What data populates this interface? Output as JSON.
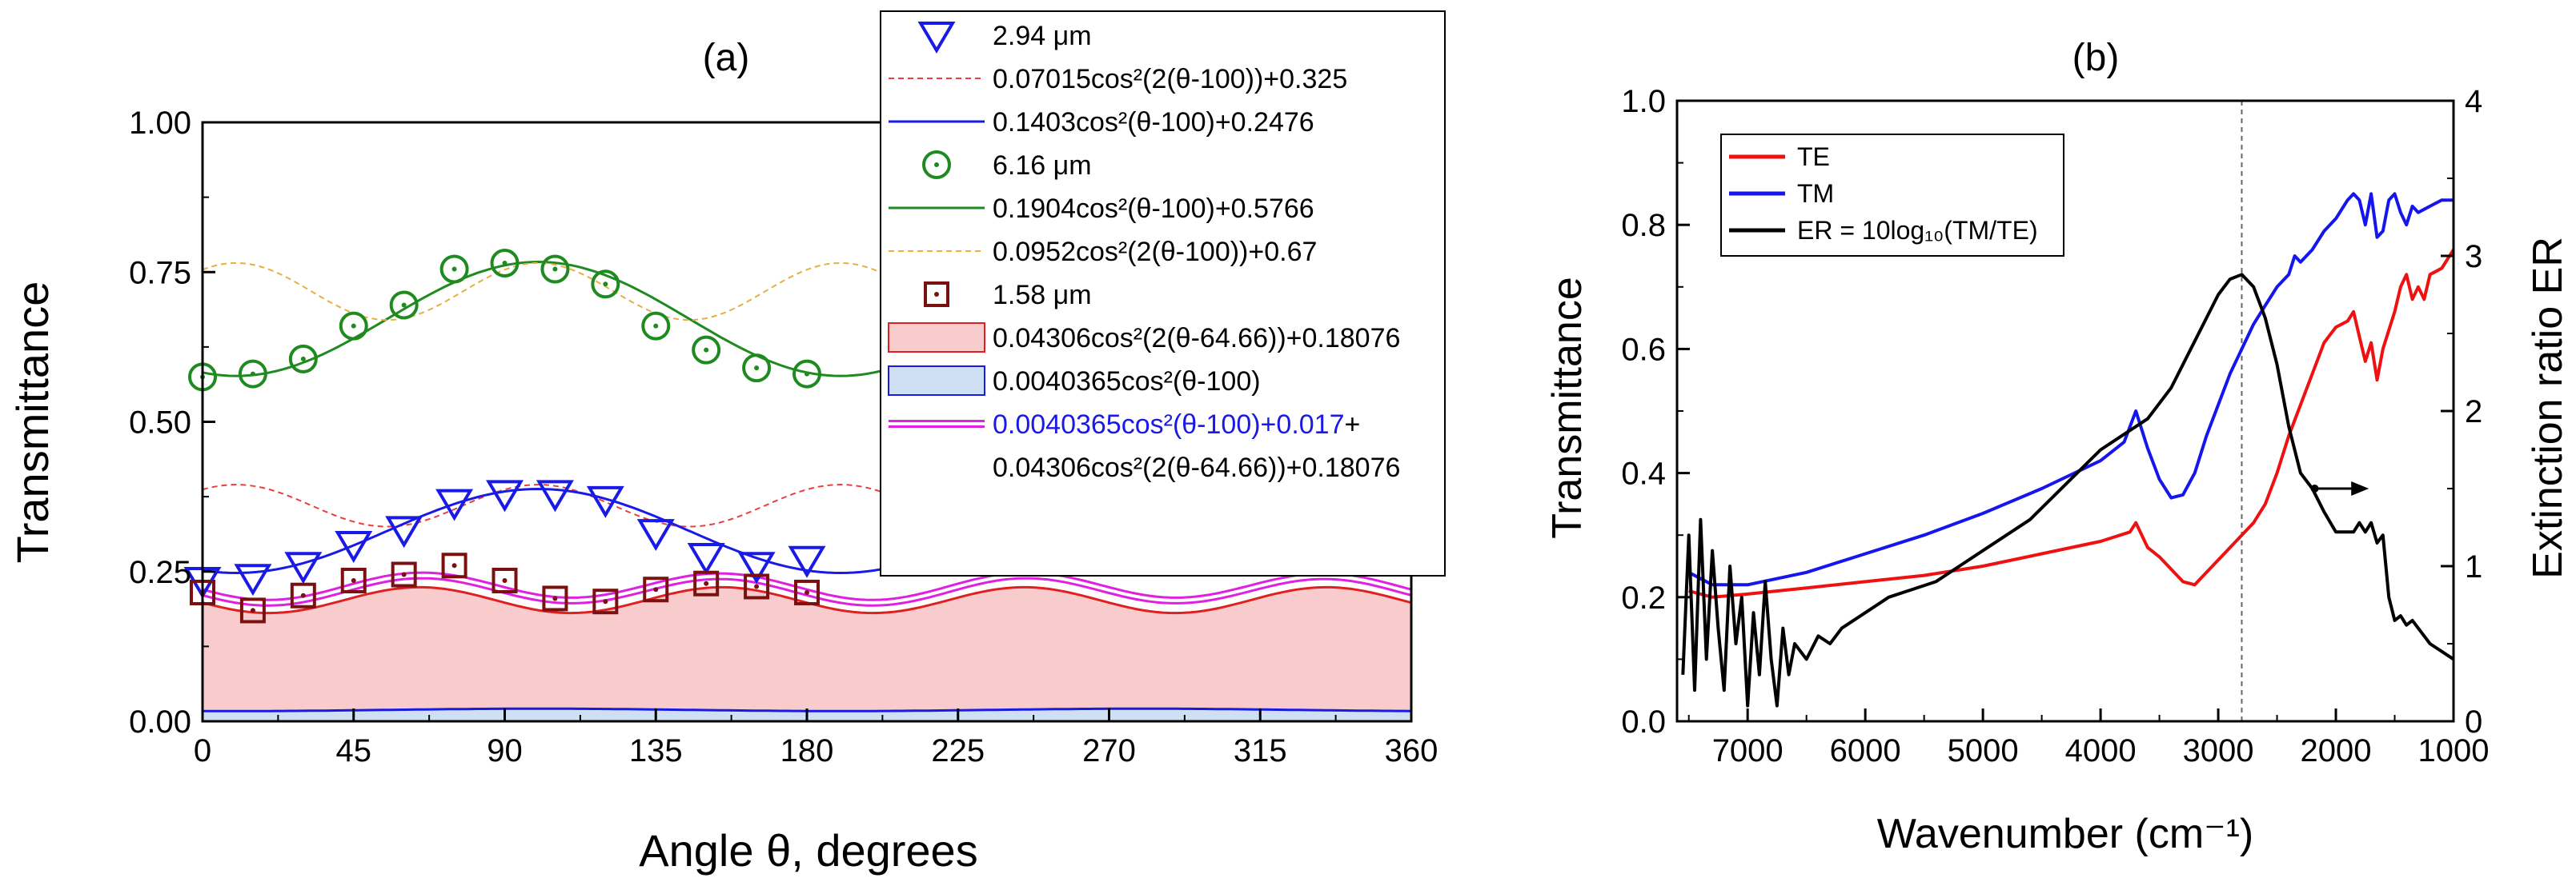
{
  "chart_data": [
    {
      "type": "scatter",
      "title": "(a)",
      "xlabel": "Angle θ, degrees",
      "ylabel": "Transmittance",
      "xlim": [
        0,
        360
      ],
      "ylim": [
        0,
        1
      ],
      "xticks": [
        0,
        45,
        90,
        135,
        180,
        225,
        270,
        315,
        360
      ],
      "yticks": [
        0.0,
        0.25,
        0.5,
        0.75,
        1.0
      ],
      "xtick_labels": [
        "0",
        "45",
        "90",
        "135",
        "180",
        "225",
        "270",
        "315",
        "360"
      ],
      "ytick_labels": [
        "0.00",
        "0.25",
        "0.50",
        "0.75",
        "1.00"
      ],
      "legend_position": "top-right",
      "series": [
        {
          "name": "2.94 μm",
          "marker": "triangle-down",
          "color": "#1a1ae6",
          "x": [
            0,
            15,
            30,
            45,
            60,
            75,
            90,
            105,
            120,
            135,
            150,
            165,
            180
          ],
          "y": [
            0.235,
            0.24,
            0.26,
            0.295,
            0.32,
            0.365,
            0.38,
            0.38,
            0.37,
            0.315,
            0.275,
            0.26,
            0.27
          ]
        },
        {
          "name": "6.16 μm",
          "marker": "circle-dot",
          "color": "#1f8a1f",
          "x": [
            0,
            15,
            30,
            45,
            60,
            75,
            90,
            105,
            120,
            135,
            150,
            165,
            180
          ],
          "y": [
            0.575,
            0.58,
            0.605,
            0.66,
            0.695,
            0.755,
            0.765,
            0.755,
            0.73,
            0.66,
            0.62,
            0.59,
            0.58
          ]
        },
        {
          "name": "1.58 μm",
          "marker": "square-dot",
          "color": "#7a1010",
          "x": [
            0,
            15,
            30,
            45,
            60,
            75,
            90,
            105,
            120,
            135,
            150,
            165,
            180
          ],
          "y": [
            0.215,
            0.185,
            0.21,
            0.235,
            0.245,
            0.26,
            0.235,
            0.205,
            0.2,
            0.22,
            0.23,
            0.225,
            0.215
          ]
        }
      ],
      "fits": [
        {
          "name": "0.07015cos²(2(θ-100))+0.325",
          "kind": "dash",
          "color": "#e84040",
          "amp": 0.07015,
          "harm": 2,
          "phase": 100,
          "offset": 0.325
        },
        {
          "name": "0.1403cos²(θ-100)+0.2476",
          "kind": "solid",
          "color": "#1a1ae6",
          "amp": 0.1403,
          "harm": 1,
          "phase": 100,
          "offset": 0.2476
        },
        {
          "name": "0.1904cos²(θ-100)+0.5766",
          "kind": "solid",
          "color": "#1f8a1f",
          "amp": 0.1904,
          "harm": 1,
          "phase": 100,
          "offset": 0.5766
        },
        {
          "name": "0.0952cos²(2(θ-100))+0.67",
          "kind": "dash",
          "color": "#e6b040",
          "amp": 0.0952,
          "harm": 2,
          "phase": 100,
          "offset": 0.67
        },
        {
          "name": "0.04306cos²(2(θ-64.66))+0.18076",
          "kind": "fill",
          "color": "#e02020",
          "fill": "#f8cccc",
          "amp": 0.04306,
          "harm": 2,
          "phase": 64.66,
          "offset": 0.18076
        },
        {
          "name": "0.0040365cos²(θ-100)",
          "kind": "fill",
          "color": "#1a1ae6",
          "fill": "#cfe0f5",
          "amp": 0.0040365,
          "harm": 1,
          "phase": 100,
          "offset": 0.017
        }
      ],
      "legend": {
        "entries": [
          "2.94 μm",
          "0.07015cos²(2(θ-100))+0.325",
          "0.1403cos²(θ-100)+0.2476",
          "6.16 μm",
          "0.1904cos²(θ-100)+0.5766",
          "0.0952cos²(2(θ-100))+0.67",
          "1.58 μm",
          "0.04306cos²(2(θ-64.66))+0.18076",
          "0.0040365cos²(θ-100)"
        ],
        "sum_part1": "0.0040365cos²(θ-100)+0.017",
        "sum_plus": "+",
        "sum_part2": "0.04306cos²(2(θ-64.66))+0.18076"
      }
    },
    {
      "type": "line",
      "title": "(b)",
      "xlabel": "Wavenumber (cm⁻¹)",
      "ylabel": "Transmittance",
      "y2label": "Extinction ratio ER",
      "xlim": [
        7600,
        1000
      ],
      "ylim": [
        0,
        1
      ],
      "y2lim": [
        0,
        4
      ],
      "xticks": [
        7000,
        6000,
        5000,
        4000,
        3000,
        2000,
        1000
      ],
      "xtick_labels": [
        "7000",
        "6000",
        "5000",
        "4000",
        "3000",
        "2000",
        "1000"
      ],
      "yticks": [
        0.0,
        0.2,
        0.4,
        0.6,
        0.8,
        1.0
      ],
      "ytick_labels": [
        "0.0",
        "0.2",
        "0.4",
        "0.6",
        "0.8",
        "1.0"
      ],
      "y2ticks": [
        0,
        1,
        2,
        3,
        4
      ],
      "y2tick_labels": [
        "0",
        "1",
        "2",
        "3",
        "4"
      ],
      "vline_x": 2800,
      "arrow": {
        "from_x": 2180,
        "to_x": 1720,
        "y2": 1.5
      },
      "legend_position": "top-left",
      "series": [
        {
          "name": "TE",
          "color": "#ee1111",
          "axis": "left",
          "x": [
            7500,
            7300,
            7000,
            6500,
            6000,
            5500,
            5000,
            4500,
            4000,
            3750,
            3700,
            3600,
            3500,
            3400,
            3300,
            3200,
            3100,
            3000,
            2900,
            2800,
            2700,
            2600,
            2500,
            2400,
            2300,
            2200,
            2100,
            2000,
            1900,
            1850,
            1800,
            1750,
            1700,
            1650,
            1600,
            1500,
            1450,
            1400,
            1350,
            1300,
            1250,
            1200,
            1100,
            1000
          ],
          "y": [
            0.21,
            0.2,
            0.205,
            0.215,
            0.225,
            0.235,
            0.25,
            0.27,
            0.29,
            0.305,
            0.32,
            0.28,
            0.265,
            0.245,
            0.225,
            0.22,
            0.24,
            0.26,
            0.28,
            0.3,
            0.32,
            0.35,
            0.4,
            0.46,
            0.51,
            0.56,
            0.61,
            0.635,
            0.645,
            0.66,
            0.62,
            0.58,
            0.61,
            0.55,
            0.6,
            0.66,
            0.7,
            0.72,
            0.68,
            0.7,
            0.68,
            0.72,
            0.73,
            0.76
          ]
        },
        {
          "name": "TM",
          "color": "#1515ee",
          "axis": "left",
          "x": [
            7500,
            7300,
            7000,
            6500,
            6000,
            5500,
            5000,
            4500,
            4000,
            3800,
            3700,
            3600,
            3500,
            3400,
            3300,
            3200,
            3100,
            3000,
            2900,
            2800,
            2700,
            2600,
            2500,
            2400,
            2350,
            2300,
            2200,
            2100,
            2000,
            1900,
            1850,
            1800,
            1750,
            1700,
            1650,
            1600,
            1550,
            1500,
            1450,
            1400,
            1350,
            1300,
            1200,
            1100,
            1000
          ],
          "y": [
            0.24,
            0.22,
            0.22,
            0.24,
            0.27,
            0.3,
            0.335,
            0.375,
            0.42,
            0.45,
            0.5,
            0.44,
            0.39,
            0.36,
            0.365,
            0.4,
            0.46,
            0.51,
            0.56,
            0.6,
            0.64,
            0.67,
            0.7,
            0.72,
            0.75,
            0.74,
            0.76,
            0.79,
            0.81,
            0.84,
            0.85,
            0.84,
            0.8,
            0.85,
            0.78,
            0.79,
            0.84,
            0.85,
            0.82,
            0.8,
            0.83,
            0.82,
            0.83,
            0.84,
            0.84
          ]
        },
        {
          "name": "ER = 10log₁₀(TM/TE)",
          "color": "#000000",
          "axis": "right",
          "x": [
            7550,
            7500,
            7450,
            7400,
            7350,
            7300,
            7250,
            7200,
            7150,
            7100,
            7050,
            7000,
            6950,
            6900,
            6850,
            6800,
            6750,
            6700,
            6650,
            6600,
            6500,
            6400,
            6300,
            6200,
            6000,
            5800,
            5600,
            5400,
            5200,
            5000,
            4800,
            4600,
            4400,
            4200,
            4000,
            3800,
            3600,
            3400,
            3200,
            3100,
            3000,
            2900,
            2800,
            2700,
            2600,
            2500,
            2400,
            2300,
            2200,
            2100,
            2000,
            1900,
            1850,
            1800,
            1750,
            1700,
            1650,
            1600,
            1550,
            1500,
            1450,
            1400,
            1350,
            1300,
            1250,
            1200,
            1100,
            1000
          ],
          "y": [
            0.3,
            1.2,
            0.2,
            1.3,
            0.4,
            1.1,
            0.6,
            0.2,
            1.0,
            0.5,
            0.8,
            0.1,
            0.7,
            0.3,
            0.9,
            0.4,
            0.1,
            0.6,
            0.3,
            0.5,
            0.4,
            0.55,
            0.5,
            0.6,
            0.7,
            0.8,
            0.85,
            0.9,
            1.0,
            1.1,
            1.2,
            1.3,
            1.45,
            1.6,
            1.75,
            1.85,
            1.95,
            2.15,
            2.45,
            2.6,
            2.75,
            2.85,
            2.88,
            2.8,
            2.6,
            2.3,
            1.9,
            1.6,
            1.5,
            1.35,
            1.22,
            1.22,
            1.22,
            1.28,
            1.22,
            1.28,
            1.15,
            1.2,
            0.8,
            0.65,
            0.68,
            0.62,
            0.65,
            0.6,
            0.55,
            0.5,
            0.45,
            0.4
          ]
        }
      ]
    }
  ]
}
